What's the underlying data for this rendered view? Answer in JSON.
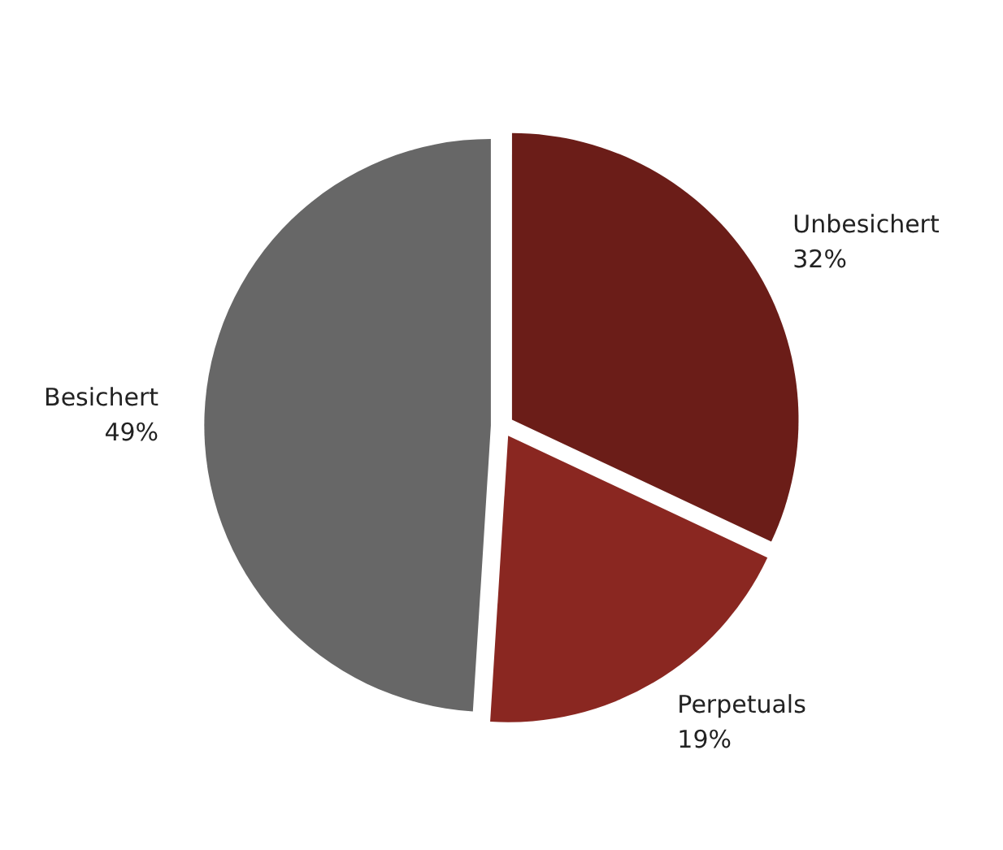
{
  "chart_data": {
    "type": "pie",
    "categories": [
      "Unbesichert",
      "Perpetuals",
      "Besichert"
    ],
    "values": [
      32,
      19,
      49
    ],
    "colors": [
      "#6b1d18",
      "#8a2721",
      "#676767"
    ],
    "value_labels": [
      "32%",
      "19%",
      "49%"
    ],
    "legend": false
  }
}
